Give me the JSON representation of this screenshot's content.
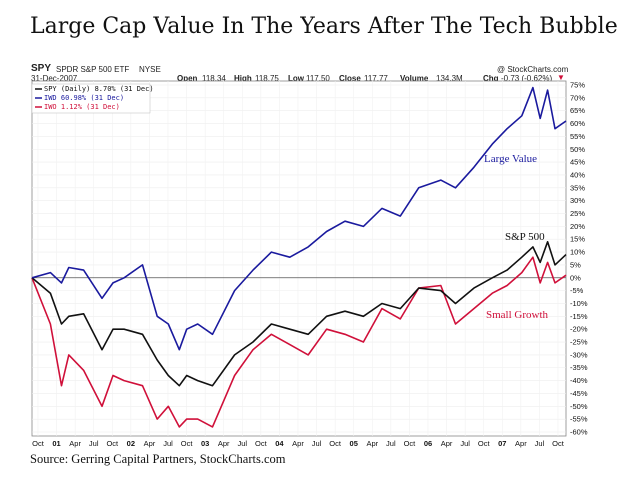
{
  "title": "Large Cap Value In The Years After The Tech Bubble",
  "source": "Source: Gerring Capital Partners, StockCharts.com",
  "quote": {
    "symbol": "SPY",
    "name": "SPDR S&P 500 ETF",
    "exchange": "NYSE",
    "date": "31-Dec-2007",
    "watermark": "@ StockCharts.com",
    "open_label": "Open",
    "open": "118.34",
    "high_label": "High",
    "high": "118.75",
    "low_label": "Low",
    "low": "117.50",
    "close_label": "Close",
    "close": "117.77",
    "volume_label": "Volume",
    "volume": "134.3M",
    "chg_label": "Chg",
    "chg": "-0.73 (-0.62%)"
  },
  "legend": [
    {
      "text": "SPY (Daily) 8.70% (31 Dec)",
      "color": "#111111"
    },
    {
      "text": "IWD 60.98% (31 Dec)",
      "color": "#1a1a9e"
    },
    {
      "text": "IWO 1.12% (31 Dec)",
      "color": "#d0103a"
    }
  ],
  "annotations": {
    "large_value": "Large Value",
    "sp500": "S&P 500",
    "small_growth": "Small Growth"
  },
  "chart_data": {
    "type": "line",
    "ylim": [
      -60,
      75
    ],
    "y_ticks": [
      75,
      70,
      65,
      60,
      55,
      50,
      45,
      40,
      35,
      30,
      25,
      20,
      15,
      10,
      5,
      0,
      -5,
      -10,
      -15,
      -20,
      -25,
      -30,
      -35,
      -40,
      -45,
      -50,
      -55,
      -60
    ],
    "y_tick_labels": [
      "75%",
      "70%",
      "65%",
      "60%",
      "55%",
      "50%",
      "45%",
      "40%",
      "35%",
      "30%",
      "25%",
      "20%",
      "15%",
      "10%",
      "5%",
      "0%",
      "-5%",
      "-10%",
      "-15%",
      "-20%",
      "-25%",
      "-30%",
      "-35%",
      "-40%",
      "-45%",
      "-50%",
      "-55%",
      "-60%"
    ],
    "x_tick_labels": [
      "Oct",
      "01",
      "Apr",
      "Jul",
      "Oct",
      "02",
      "Apr",
      "Jul",
      "Oct",
      "03",
      "Apr",
      "Jul",
      "Oct",
      "04",
      "Apr",
      "Jul",
      "Oct",
      "05",
      "Apr",
      "Jul",
      "Oct",
      "06",
      "Apr",
      "Jul",
      "Oct",
      "07",
      "Apr",
      "Jul",
      "Oct"
    ],
    "x": [
      2000.75,
      2001.0,
      2001.15,
      2001.25,
      2001.45,
      2001.7,
      2001.85,
      2002.0,
      2002.25,
      2002.45,
      2002.6,
      2002.75,
      2002.85,
      2003.0,
      2003.2,
      2003.5,
      2003.75,
      2004.0,
      2004.25,
      2004.5,
      2004.75,
      2005.0,
      2005.25,
      2005.5,
      2005.75,
      2006.0,
      2006.3,
      2006.5,
      2006.75,
      2007.0,
      2007.2,
      2007.4,
      2007.55,
      2007.65,
      2007.75,
      2007.85,
      2008.0
    ],
    "series": [
      {
        "name": "SPY (Daily) 8.70% (31 Dec)",
        "color": "#111111",
        "values": [
          0,
          -6,
          -18,
          -15,
          -14,
          -28,
          -20,
          -20,
          -22,
          -32,
          -38,
          -42,
          -38,
          -40,
          -42,
          -30,
          -25,
          -18,
          -20,
          -22,
          -15,
          -13,
          -15,
          -10,
          -12,
          -4,
          -5,
          -10,
          -4,
          0,
          3,
          8,
          12,
          6,
          14,
          5,
          9
        ]
      },
      {
        "name": "IWD 60.98% (31 Dec)",
        "color": "#1a1a9e",
        "values": [
          0,
          2,
          -2,
          4,
          3,
          -8,
          -2,
          0,
          5,
          -15,
          -18,
          -28,
          -20,
          -18,
          -22,
          -5,
          3,
          10,
          8,
          12,
          18,
          22,
          20,
          27,
          24,
          35,
          38,
          35,
          43,
          52,
          58,
          63,
          74,
          62,
          73,
          58,
          61
        ]
      },
      {
        "name": "IWO 1.12% (31 Dec)",
        "color": "#d0103a",
        "values": [
          0,
          -18,
          -42,
          -30,
          -36,
          -50,
          -38,
          -40,
          -42,
          -55,
          -50,
          -58,
          -55,
          -55,
          -58,
          -38,
          -28,
          -22,
          -26,
          -30,
          -20,
          -22,
          -25,
          -12,
          -16,
          -4,
          -3,
          -18,
          -12,
          -6,
          -3,
          2,
          8,
          -2,
          6,
          -2,
          1
        ]
      }
    ]
  }
}
